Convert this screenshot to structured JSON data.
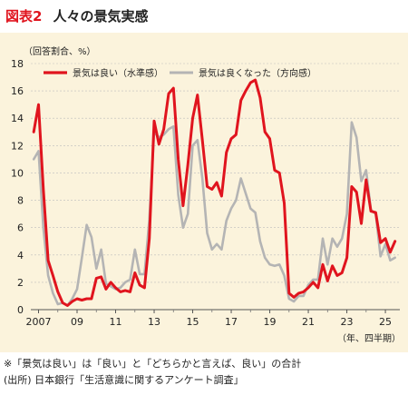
{
  "title": {
    "number": "図表2",
    "text": "人々の景気実感"
  },
  "chart_data": {
    "type": "line",
    "ylabel": "（回答割合、%）",
    "xlabel": "（年、四半期）",
    "ylim": [
      0,
      18
    ],
    "yticks": [
      0,
      2,
      4,
      6,
      8,
      10,
      12,
      14,
      16,
      18
    ],
    "xticks": [
      {
        "t": 2007.0,
        "label": "2007"
      },
      {
        "t": 2009.0,
        "label": "09"
      },
      {
        "t": 2011.0,
        "label": "11"
      },
      {
        "t": 2013.0,
        "label": "13"
      },
      {
        "t": 2015.0,
        "label": "15"
      },
      {
        "t": 2017.0,
        "label": "17"
      },
      {
        "t": 2019.0,
        "label": "19"
      },
      {
        "t": 2021.0,
        "label": "21"
      },
      {
        "t": 2023.0,
        "label": "23"
      },
      {
        "t": 2025.0,
        "label": "25"
      }
    ],
    "xlim": [
      2006.6,
      2025.75
    ],
    "grid": true,
    "legend_position": "top",
    "series": [
      {
        "name": "景気は良い（水準感）",
        "color": "#e0141e",
        "points": [
          [
            2006.75,
            13.0
          ],
          [
            2007.0,
            15.0
          ],
          [
            2007.25,
            8.8
          ],
          [
            2007.5,
            3.6
          ],
          [
            2007.75,
            2.5
          ],
          [
            2008.0,
            1.3
          ],
          [
            2008.25,
            0.5
          ],
          [
            2008.5,
            0.3
          ],
          [
            2008.75,
            0.6
          ],
          [
            2009.0,
            0.8
          ],
          [
            2009.25,
            0.7
          ],
          [
            2009.5,
            0.8
          ],
          [
            2009.75,
            0.8
          ],
          [
            2010.0,
            2.3
          ],
          [
            2010.25,
            2.4
          ],
          [
            2010.5,
            1.5
          ],
          [
            2010.75,
            2.0
          ],
          [
            2011.0,
            1.6
          ],
          [
            2011.25,
            1.3
          ],
          [
            2011.5,
            1.4
          ],
          [
            2011.75,
            1.3
          ],
          [
            2012.0,
            2.7
          ],
          [
            2012.25,
            1.8
          ],
          [
            2012.5,
            1.6
          ],
          [
            2012.75,
            5.2
          ],
          [
            2013.0,
            13.8
          ],
          [
            2013.25,
            12.1
          ],
          [
            2013.5,
            13.2
          ],
          [
            2013.75,
            15.8
          ],
          [
            2014.0,
            16.2
          ],
          [
            2014.25,
            11.0
          ],
          [
            2014.5,
            7.6
          ],
          [
            2014.75,
            10.6
          ],
          [
            2015.0,
            14.0
          ],
          [
            2015.25,
            15.7
          ],
          [
            2015.5,
            12.4
          ],
          [
            2015.75,
            9.0
          ],
          [
            2016.0,
            8.8
          ],
          [
            2016.25,
            9.3
          ],
          [
            2016.5,
            8.3
          ],
          [
            2016.75,
            11.5
          ],
          [
            2017.0,
            12.5
          ],
          [
            2017.25,
            12.8
          ],
          [
            2017.5,
            15.3
          ],
          [
            2017.75,
            16.0
          ],
          [
            2018.0,
            16.6
          ],
          [
            2018.25,
            16.8
          ],
          [
            2018.5,
            15.5
          ],
          [
            2018.75,
            13.0
          ],
          [
            2019.0,
            12.5
          ],
          [
            2019.25,
            10.2
          ],
          [
            2019.5,
            10.0
          ],
          [
            2019.75,
            7.8
          ],
          [
            2020.0,
            1.2
          ],
          [
            2020.25,
            0.9
          ],
          [
            2020.5,
            1.2
          ],
          [
            2020.75,
            1.3
          ],
          [
            2021.0,
            1.6
          ],
          [
            2021.25,
            2.0
          ],
          [
            2021.5,
            1.6
          ],
          [
            2021.75,
            3.3
          ],
          [
            2022.0,
            2.1
          ],
          [
            2022.25,
            3.2
          ],
          [
            2022.5,
            2.5
          ],
          [
            2022.75,
            2.7
          ],
          [
            2023.0,
            3.8
          ],
          [
            2023.25,
            9.0
          ],
          [
            2023.5,
            8.6
          ],
          [
            2023.75,
            6.3
          ],
          [
            2024.0,
            9.5
          ],
          [
            2024.25,
            7.2
          ],
          [
            2024.5,
            7.1
          ],
          [
            2024.75,
            4.9
          ],
          [
            2025.0,
            5.2
          ],
          [
            2025.25,
            4.2
          ],
          [
            2025.5,
            5.0
          ]
        ]
      },
      {
        "name": "景気は良くなった（方向感）",
        "color": "#b4b4b4",
        "points": [
          [
            2006.75,
            11.0
          ],
          [
            2007.0,
            11.6
          ],
          [
            2007.25,
            6.0
          ],
          [
            2007.5,
            2.5
          ],
          [
            2007.75,
            1.2
          ],
          [
            2008.0,
            0.4
          ],
          [
            2008.25,
            0.5
          ],
          [
            2008.5,
            0.3
          ],
          [
            2008.75,
            0.8
          ],
          [
            2009.0,
            1.5
          ],
          [
            2009.25,
            3.8
          ],
          [
            2009.5,
            6.2
          ],
          [
            2009.75,
            5.3
          ],
          [
            2010.0,
            3.0
          ],
          [
            2010.25,
            4.4
          ],
          [
            2010.5,
            1.9
          ],
          [
            2010.75,
            1.7
          ],
          [
            2011.0,
            1.5
          ],
          [
            2011.25,
            1.6
          ],
          [
            2011.5,
            2.0
          ],
          [
            2011.75,
            2.2
          ],
          [
            2012.0,
            4.4
          ],
          [
            2012.25,
            2.6
          ],
          [
            2012.5,
            2.6
          ],
          [
            2012.75,
            6.6
          ],
          [
            2013.0,
            13.0
          ],
          [
            2013.25,
            12.6
          ],
          [
            2013.5,
            12.8
          ],
          [
            2013.75,
            13.2
          ],
          [
            2014.0,
            13.4
          ],
          [
            2014.25,
            8.4
          ],
          [
            2014.5,
            6.0
          ],
          [
            2014.75,
            7.0
          ],
          [
            2015.0,
            12.0
          ],
          [
            2015.25,
            12.4
          ],
          [
            2015.5,
            9.6
          ],
          [
            2015.75,
            5.6
          ],
          [
            2016.0,
            4.4
          ],
          [
            2016.25,
            4.8
          ],
          [
            2016.5,
            4.4
          ],
          [
            2016.75,
            6.5
          ],
          [
            2017.0,
            7.4
          ],
          [
            2017.25,
            8.0
          ],
          [
            2017.5,
            9.6
          ],
          [
            2017.75,
            8.5
          ],
          [
            2018.0,
            7.4
          ],
          [
            2018.25,
            7.1
          ],
          [
            2018.5,
            5.0
          ],
          [
            2018.75,
            3.8
          ],
          [
            2019.0,
            3.3
          ],
          [
            2019.25,
            3.2
          ],
          [
            2019.5,
            3.3
          ],
          [
            2019.75,
            2.5
          ],
          [
            2020.0,
            0.8
          ],
          [
            2020.25,
            0.6
          ],
          [
            2020.5,
            1.0
          ],
          [
            2020.75,
            1.0
          ],
          [
            2021.0,
            1.8
          ],
          [
            2021.25,
            2.2
          ],
          [
            2021.5,
            2.2
          ],
          [
            2021.75,
            5.2
          ],
          [
            2022.0,
            3.3
          ],
          [
            2022.25,
            5.2
          ],
          [
            2022.5,
            4.6
          ],
          [
            2022.75,
            5.2
          ],
          [
            2023.0,
            7.0
          ],
          [
            2023.25,
            13.7
          ],
          [
            2023.5,
            12.6
          ],
          [
            2023.75,
            9.4
          ],
          [
            2024.0,
            10.2
          ],
          [
            2024.25,
            7.3
          ],
          [
            2024.5,
            7.0
          ],
          [
            2024.75,
            3.9
          ],
          [
            2025.0,
            4.8
          ],
          [
            2025.25,
            3.6
          ],
          [
            2025.5,
            3.8
          ]
        ]
      }
    ]
  },
  "notes": {
    "line1": "※「景気は良い」は「良い」と「どちらかと言えば、良い」の合計",
    "line2": "(出所) 日本銀行「生活意識に関するアンケート調査」"
  }
}
